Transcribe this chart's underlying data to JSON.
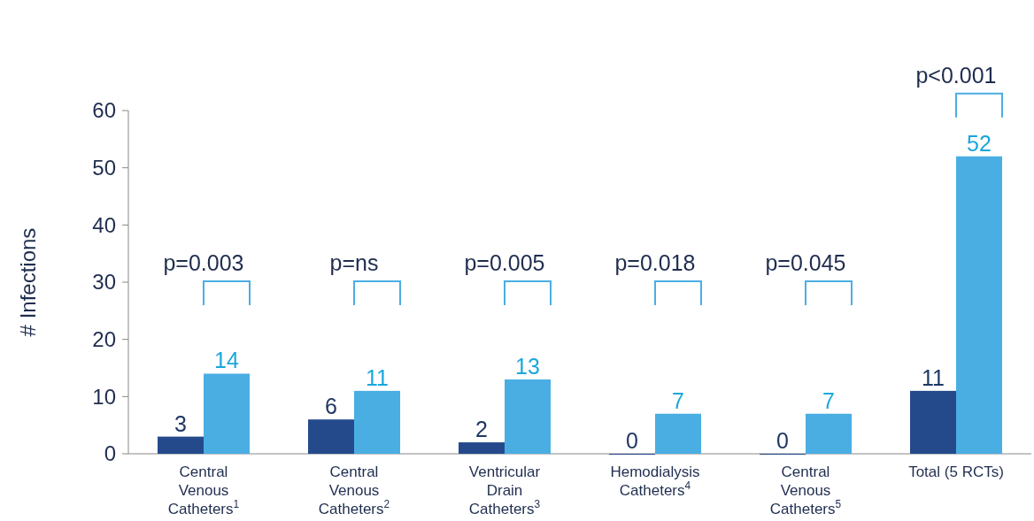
{
  "chart_data": {
    "type": "bar",
    "ylabel": "# Infections",
    "categories": [
      "Central\nVenous\nCatheters$^{1}$",
      "Central\nVenous\nCatheters$^{2}$",
      "Ventricular\nDrain\nCatheters$^{3}$",
      "Hemodialysis\nCatheters$^{4}$",
      "Central\nVenous\nCatheters$^{5}$",
      "Total (5 RCTs)"
    ],
    "series": [
      {
        "color": "#254a8c",
        "values": [
          3,
          6,
          2,
          0,
          0,
          11
        ]
      },
      {
        "color": "#4aaee3",
        "values": [
          14,
          11,
          13,
          7,
          7,
          52
        ]
      }
    ],
    "ylim": [
      0,
      60
    ],
    "yticks": [
      0,
      10,
      20,
      30,
      40,
      50,
      60
    ],
    "data_labels": true,
    "grid": false,
    "annotations": [
      "p=0.003",
      "p=ns",
      "p=0.005",
      "p=0.018",
      "p=0.045",
      "p<0.001"
    ]
  }
}
